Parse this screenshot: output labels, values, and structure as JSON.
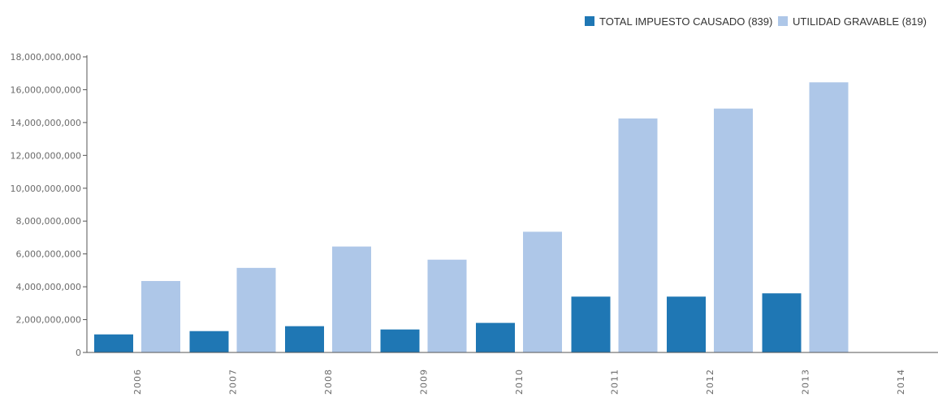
{
  "chart_data": {
    "type": "bar",
    "title": "",
    "xlabel": "",
    "ylabel": "",
    "categories": [
      "2006",
      "2007",
      "2008",
      "2009",
      "2010",
      "2011",
      "2012",
      "2013",
      "2014"
    ],
    "series": [
      {
        "name": "TOTAL IMPUESTO CAUSADO (839)",
        "color": "#1f77b4",
        "values": [
          1100000000,
          1300000000,
          1600000000,
          1400000000,
          1800000000,
          3400000000,
          3400000000,
          3600000000,
          0
        ]
      },
      {
        "name": "UTILIDAD GRAVABLE (819)",
        "color": "#aec7e8",
        "values": [
          4350000000,
          5150000000,
          6450000000,
          5650000000,
          7350000000,
          14250000000,
          14850000000,
          16450000000,
          0
        ]
      }
    ],
    "ylim": [
      0,
      18000000000
    ],
    "yticks": [
      0,
      2000000000,
      4000000000,
      6000000000,
      8000000000,
      10000000000,
      12000000000,
      14000000000,
      16000000000,
      18000000000
    ],
    "ytick_labels": [
      "0",
      "2,000,000,000",
      "4,000,000,000",
      "6,000,000,000",
      "8,000,000,000",
      "10,000,000,000",
      "12,000,000,000",
      "14,000,000,000",
      "16,000,000,000",
      "18,000,000,000"
    ],
    "grid": false,
    "legend_position": "top-right"
  }
}
